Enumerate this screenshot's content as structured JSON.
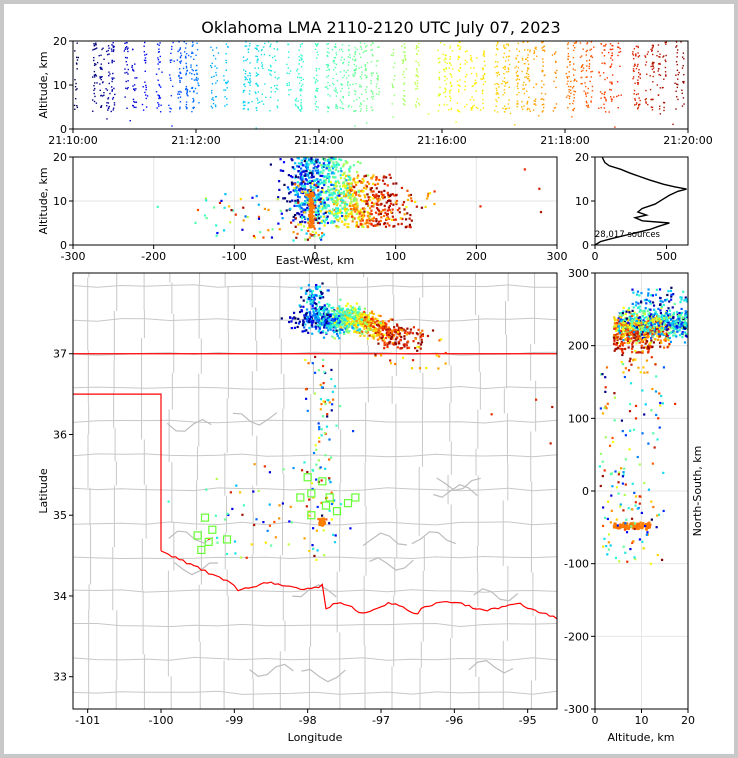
{
  "chart_data": {
    "type": "scatter",
    "title": "Oklahoma LMA 2110-2120 UTC July 07, 2023",
    "colors": {
      "state_border": "#ff0000",
      "county_lines": "#c8c8c8",
      "station_marker": "#66ff33",
      "histogram_line": "#000000",
      "time_colormap": [
        "#00004c",
        "#0000ff",
        "#00c8ff",
        "#33ffcc",
        "#80ff80",
        "#ffff00",
        "#ffa500",
        "#ff3300",
        "#800000"
      ]
    },
    "panels": {
      "time_altitude": {
        "ylabel": "Altitude, km",
        "ylim": [
          0,
          20
        ],
        "yticks": [
          "0",
          "10",
          "20"
        ],
        "xlim": [
          "21:10:00",
          "21:20:00"
        ],
        "xticks": [
          "21:10:00",
          "21:12:00",
          "21:14:00",
          "21:16:00",
          "21:18:00",
          "21:20:00"
        ]
      },
      "ew_altitude": {
        "xlabel": "East-West, km",
        "ylabel": "Altitude, km",
        "xlim": [
          -300,
          300
        ],
        "ylim": [
          0,
          20
        ],
        "xticks": [
          "-300",
          "-200",
          "-100",
          "0",
          "100",
          "200",
          "300"
        ],
        "yticks": [
          "0",
          "10",
          "20"
        ],
        "grid": true
      },
      "altitude_histogram": {
        "xlim": [
          0,
          650
        ],
        "ylim": [
          0,
          20
        ],
        "xticks": [
          "0",
          "500"
        ],
        "yticks": [
          "0",
          "10",
          "20"
        ],
        "annotation": "28,017 sources",
        "profile": [
          [
            0,
            0
          ],
          [
            40,
            0.8
          ],
          [
            120,
            1.5
          ],
          [
            250,
            2.5
          ],
          [
            380,
            3.5
          ],
          [
            450,
            4.3
          ],
          [
            520,
            5.0
          ],
          [
            330,
            5.5
          ],
          [
            280,
            6.2
          ],
          [
            360,
            6.8
          ],
          [
            300,
            7.5
          ],
          [
            330,
            8.3
          ],
          [
            420,
            9.3
          ],
          [
            470,
            10.3
          ],
          [
            520,
            11.3
          ],
          [
            580,
            12.2
          ],
          [
            640,
            12.7
          ],
          [
            560,
            13.2
          ],
          [
            480,
            13.8
          ],
          [
            380,
            14.8
          ],
          [
            300,
            15.7
          ],
          [
            240,
            16.4
          ],
          [
            180,
            17.2
          ],
          [
            100,
            18.0
          ],
          [
            70,
            18.7
          ],
          [
            60,
            19.3
          ],
          [
            50,
            20
          ]
        ]
      },
      "plan_view": {
        "xlabel": "Longitude",
        "ylabel": "Latitude",
        "xlim": [
          -101.2,
          -94.6
        ],
        "ylim": [
          32.6,
          38.0
        ],
        "xticks": [
          "-101",
          "-100",
          "-99",
          "-98",
          "-97",
          "-96",
          "-95"
        ],
        "yticks": [
          "33",
          "34",
          "35",
          "36",
          "37"
        ],
        "stations": [
          [
            -99.5,
            34.75
          ],
          [
            -99.4,
            34.97
          ],
          [
            -99.3,
            34.82
          ],
          [
            -99.35,
            34.67
          ],
          [
            -99.1,
            34.7
          ],
          [
            -99.45,
            34.57
          ],
          [
            -98.0,
            35.47
          ],
          [
            -97.8,
            35.42
          ],
          [
            -98.1,
            35.22
          ],
          [
            -97.95,
            35.27
          ],
          [
            -97.7,
            35.22
          ],
          [
            -97.45,
            35.15
          ],
          [
            -97.35,
            35.22
          ],
          [
            -97.75,
            35.12
          ],
          [
            -97.95,
            35.0
          ],
          [
            -97.6,
            35.05
          ]
        ]
      },
      "ns_altitude": {
        "xlabel": "Altitude, km",
        "ylabel": "North-South, km",
        "xlim": [
          0,
          20
        ],
        "ylim": [
          -300,
          300
        ],
        "xticks": [
          "0",
          "10",
          "20"
        ],
        "yticks": [
          "-300",
          "-200",
          "-100",
          "0",
          "100",
          "200",
          "300"
        ],
        "grid": true
      }
    }
  }
}
